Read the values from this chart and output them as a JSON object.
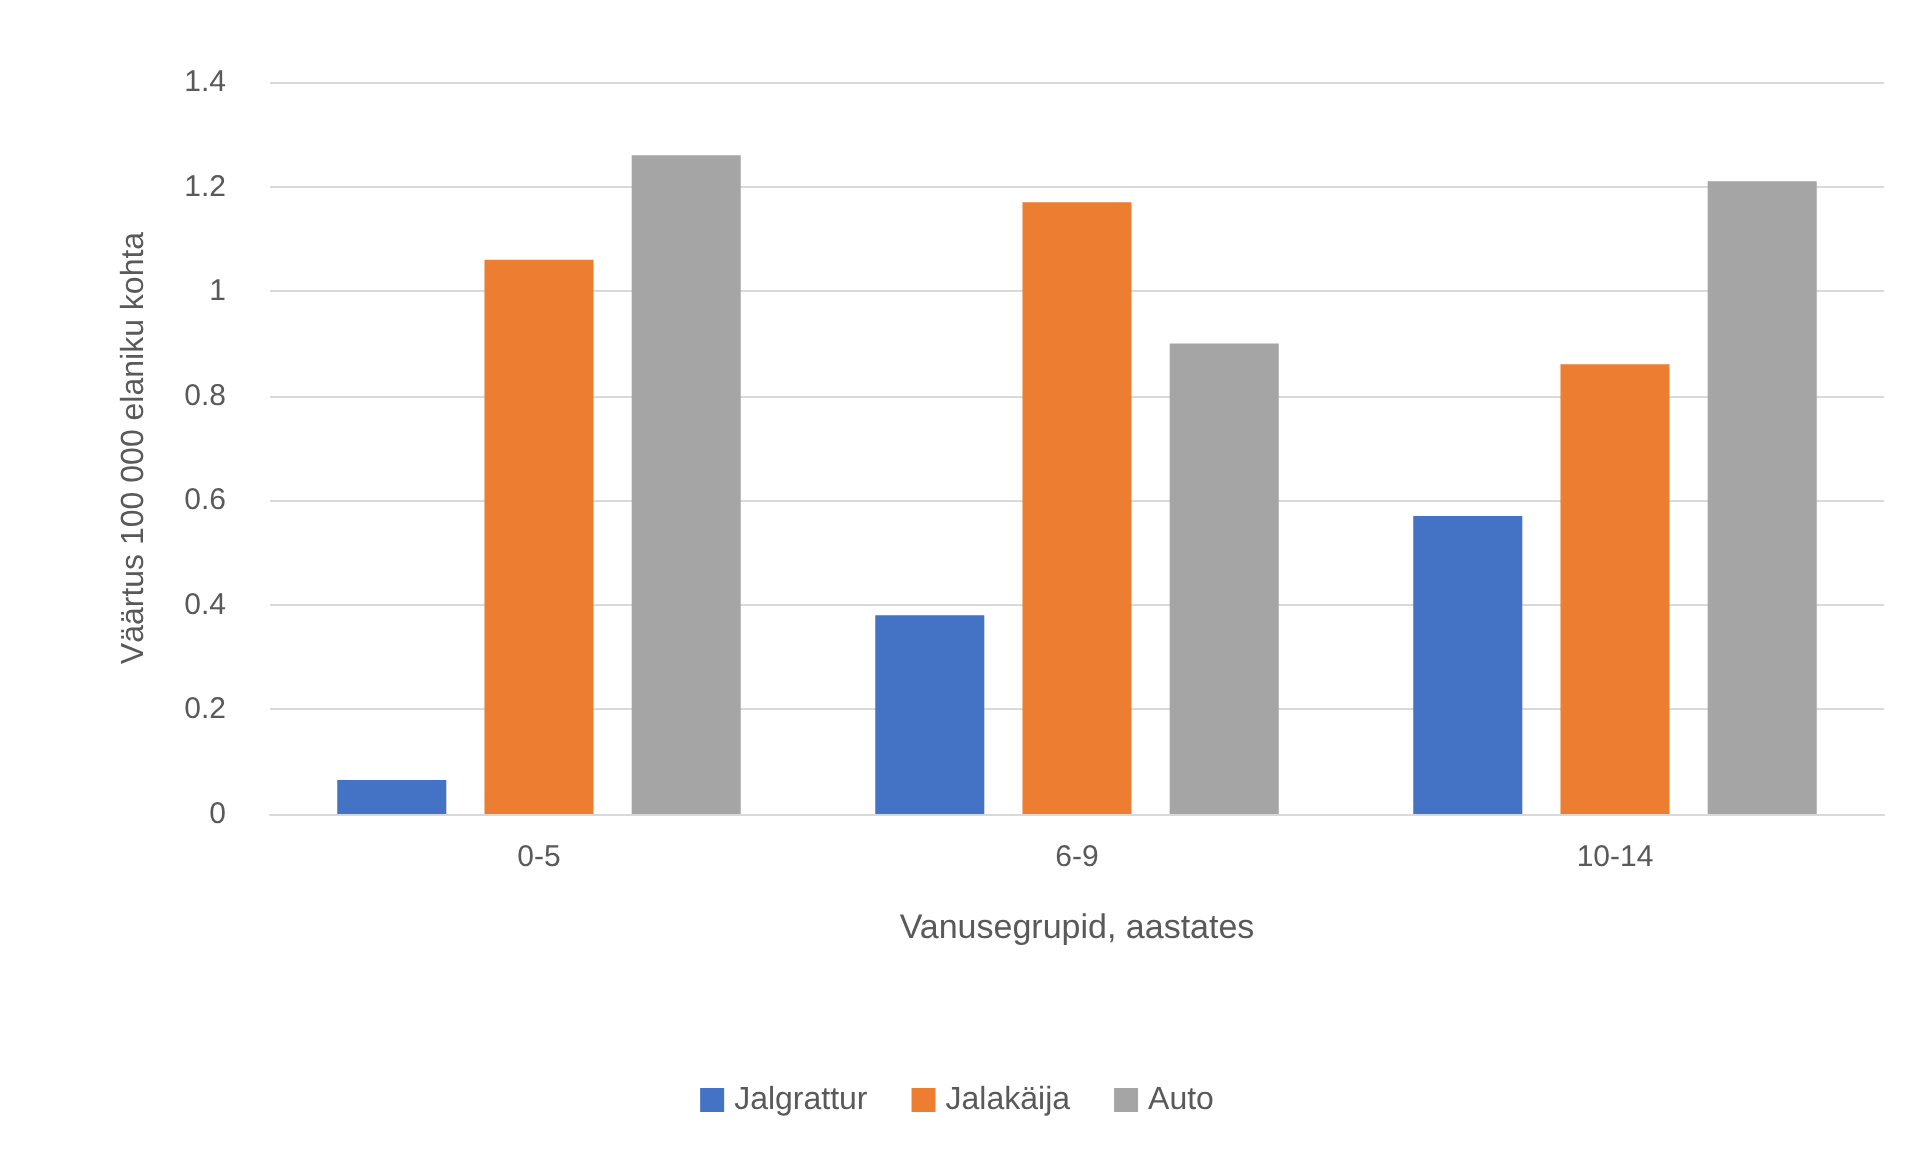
{
  "chart_data": {
    "type": "bar",
    "xlabel": "Vanusegrupid, aastates",
    "ylabel": "Väärtus 100 000 elaniku kohta",
    "categories": [
      "0-5",
      "6-9",
      "10-14"
    ],
    "series": [
      {
        "name": "Jalgrattur",
        "color": "#4472c4",
        "values": [
          0.065,
          0.38,
          0.57
        ]
      },
      {
        "name": "Jalakäija",
        "color": "#ed7d31",
        "values": [
          1.06,
          1.17,
          0.86
        ]
      },
      {
        "name": "Auto",
        "color": "#a5a5a5",
        "values": [
          1.26,
          0.9,
          1.21
        ]
      }
    ],
    "ylim": [
      0,
      1.4
    ],
    "yticks": [
      0,
      0.2,
      0.4,
      0.6,
      0.8,
      1,
      1.2,
      1.4
    ],
    "grid": "y",
    "legend": "bottom"
  }
}
